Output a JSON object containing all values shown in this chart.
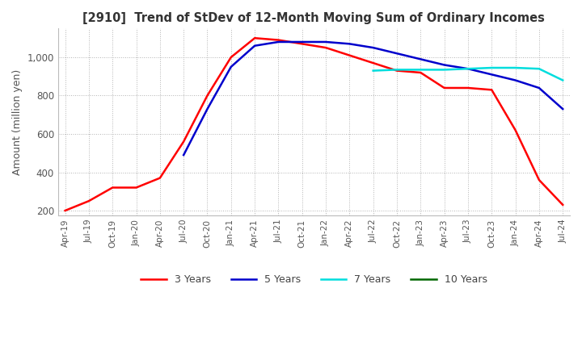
{
  "title": "[2910]  Trend of StDev of 12-Month Moving Sum of Ordinary Incomes",
  "ylabel": "Amount (million yen)",
  "ylim": [
    175,
    1150
  ],
  "yticks": [
    200,
    400,
    600,
    800,
    1000
  ],
  "line_colors": {
    "3Y": "#ff0000",
    "5Y": "#0000cc",
    "7Y": "#00dddd",
    "10Y": "#006600"
  },
  "legend_labels": [
    "3 Years",
    "5 Years",
    "7 Years",
    "10 Years"
  ],
  "x_labels": [
    "Apr-19",
    "Jul-19",
    "Oct-19",
    "Jan-20",
    "Apr-20",
    "Jul-20",
    "Oct-20",
    "Jan-21",
    "Apr-21",
    "Jul-21",
    "Oct-21",
    "Jan-22",
    "Apr-22",
    "Jul-22",
    "Oct-22",
    "Jan-23",
    "Apr-23",
    "Jul-23",
    "Oct-23",
    "Jan-24",
    "Apr-24",
    "Jul-24"
  ],
  "data_3Y": [
    200,
    250,
    320,
    320,
    370,
    560,
    800,
    1000,
    1100,
    1090,
    1070,
    1050,
    1010,
    970,
    930,
    920,
    840,
    840,
    830,
    620,
    360,
    230
  ],
  "data_5Y": [
    null,
    null,
    null,
    null,
    null,
    490,
    730,
    950,
    1060,
    1080,
    1080,
    1080,
    1070,
    1050,
    1020,
    990,
    960,
    940,
    910,
    880,
    840,
    730
  ],
  "data_7Y": [
    null,
    null,
    null,
    null,
    null,
    null,
    null,
    null,
    null,
    null,
    null,
    null,
    null,
    930,
    935,
    935,
    935,
    940,
    945,
    945,
    940,
    880
  ],
  "data_10Y": [
    null,
    null,
    null,
    null,
    null,
    null,
    null,
    null,
    null,
    null,
    null,
    null,
    null,
    null,
    null,
    null,
    null,
    null,
    null,
    null,
    null,
    null
  ],
  "background_color": "#ffffff",
  "grid_color": "#aaaaaa"
}
